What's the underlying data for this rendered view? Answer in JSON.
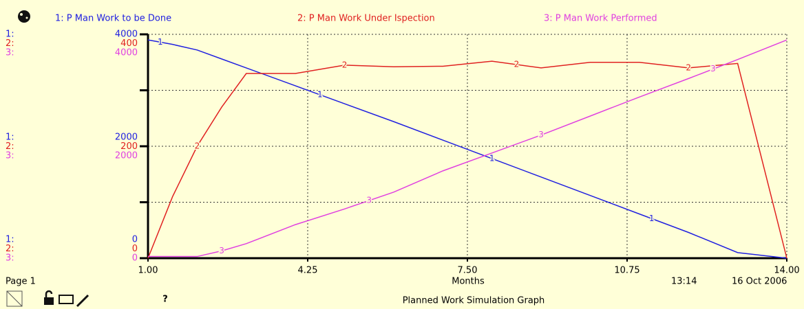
{
  "chart_data": {
    "type": "line",
    "x": [
      1,
      1.5,
      2,
      2.5,
      3,
      4,
      5,
      6,
      7,
      8,
      9,
      10,
      11,
      12,
      13,
      14
    ],
    "series": [
      {
        "name": "1: P Man Work to be Done",
        "marker": "1",
        "axis_prefix": "1:",
        "color": "#2020e0",
        "values": [
          3900,
          3820,
          3720,
          3560,
          3400,
          3080,
          2760,
          2440,
          2110,
          1780,
          1450,
          1120,
          790,
          460,
          100,
          0
        ]
      },
      {
        "name": "2: P Man Work Under Ispection",
        "marker": "2",
        "axis_prefix": "2:",
        "color": "#e02020",
        "axis": "y2",
        "values": [
          0,
          110,
          200,
          270,
          330,
          330,
          345,
          342,
          343,
          352,
          340,
          350,
          350,
          340,
          348,
          0
        ]
      },
      {
        "name": "3: P Man Work Performed",
        "marker": "3",
        "axis_prefix": "3:",
        "color": "#e040e0",
        "values": [
          30,
          30,
          30,
          130,
          260,
          600,
          880,
          1180,
          1560,
          1880,
          2200,
          2540,
          2880,
          3210,
          3550,
          3900
        ]
      }
    ],
    "xlim": [
      1,
      14
    ],
    "xticks": [
      {
        "value": 1,
        "label": "1.00"
      },
      {
        "value": 4.25,
        "label": "4.25"
      },
      {
        "value": 7.5,
        "label": "7.50"
      },
      {
        "value": 10.75,
        "label": "10.75"
      },
      {
        "value": 14,
        "label": "14.00"
      }
    ],
    "xlabel": "Months",
    "ylim": [
      0,
      4000
    ],
    "yticks": [
      0,
      2000,
      4000
    ],
    "minor_yticks": [
      1000,
      3000
    ],
    "y2lim": [
      0,
      400
    ],
    "y2ticks": [
      0,
      200,
      400
    ],
    "grid": true,
    "page_label": "Page 1",
    "time": "13:14",
    "date": "16 Oct 2006",
    "caption": "Planned Work Simulation Graph"
  }
}
